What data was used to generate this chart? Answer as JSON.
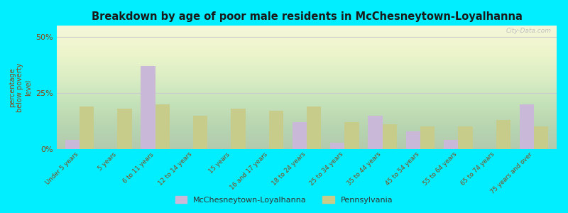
{
  "title": "Breakdown by age of poor male residents in McChesneytown-Loyalhanna",
  "ylabel": "percentage\nbelow poverty\nlevel",
  "categories": [
    "Under 5 years",
    "5 years",
    "6 to 11 years",
    "12 to 14 years",
    "15 years",
    "16 and 17 years",
    "18 to 24 years",
    "25 to 34 years",
    "35 to 44 years",
    "45 to 54 years",
    "55 to 64 years",
    "65 to 74 years",
    "75 years and over"
  ],
  "mcchesneytown": [
    4,
    0,
    37,
    0,
    0,
    0,
    12,
    3,
    15,
    8,
    4,
    0,
    20
  ],
  "pennsylvania": [
    19,
    18,
    20,
    15,
    18,
    17,
    19,
    12,
    11,
    10,
    10,
    13,
    10
  ],
  "color_mc": "#c9b8d8",
  "color_pa": "#c8cc8a",
  "bg_top": "#f0f5d8",
  "bg_bottom": "#e0eed0",
  "outer_bg": "#00eeff",
  "ylim": [
    0,
    55
  ],
  "yticks": [
    0,
    25,
    50
  ],
  "ytick_labels": [
    "0%",
    "25%",
    "50%"
  ],
  "bar_width": 0.38,
  "legend_mc": "McChesneytown-Loyalhanna",
  "legend_pa": "Pennsylvania",
  "watermark": "City-Data.com"
}
